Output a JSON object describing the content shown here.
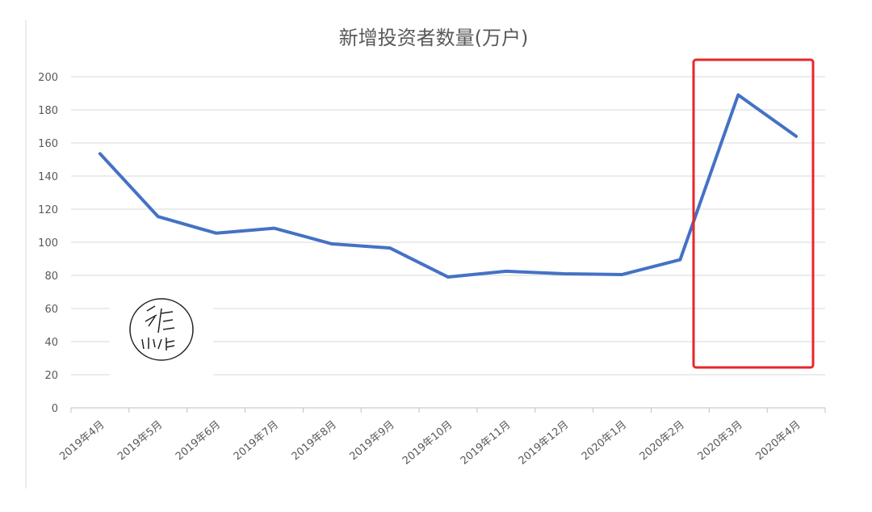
{
  "chart_data": {
    "type": "line",
    "title": "新增投资者数量(万户)",
    "categories": [
      "2019年4月",
      "2019年5月",
      "2019年6月",
      "2019年7月",
      "2019年8月",
      "2019年9月",
      "2019年10月",
      "2019年11月",
      "2019年12月",
      "2020年1月",
      "2020年2月",
      "2020年3月",
      "2020年4月"
    ],
    "series": [
      {
        "name": "新增投资者数量",
        "color": "#4472c4",
        "values": [
          153.5,
          115.5,
          105.5,
          108.5,
          99,
          96.5,
          79,
          82.5,
          81,
          80.5,
          89.5,
          189,
          164
        ]
      }
    ],
    "ylim": [
      0,
      200
    ],
    "yticks": [
      0,
      20,
      40,
      60,
      80,
      100,
      120,
      140,
      160,
      180,
      200
    ],
    "grid": true
  }
}
